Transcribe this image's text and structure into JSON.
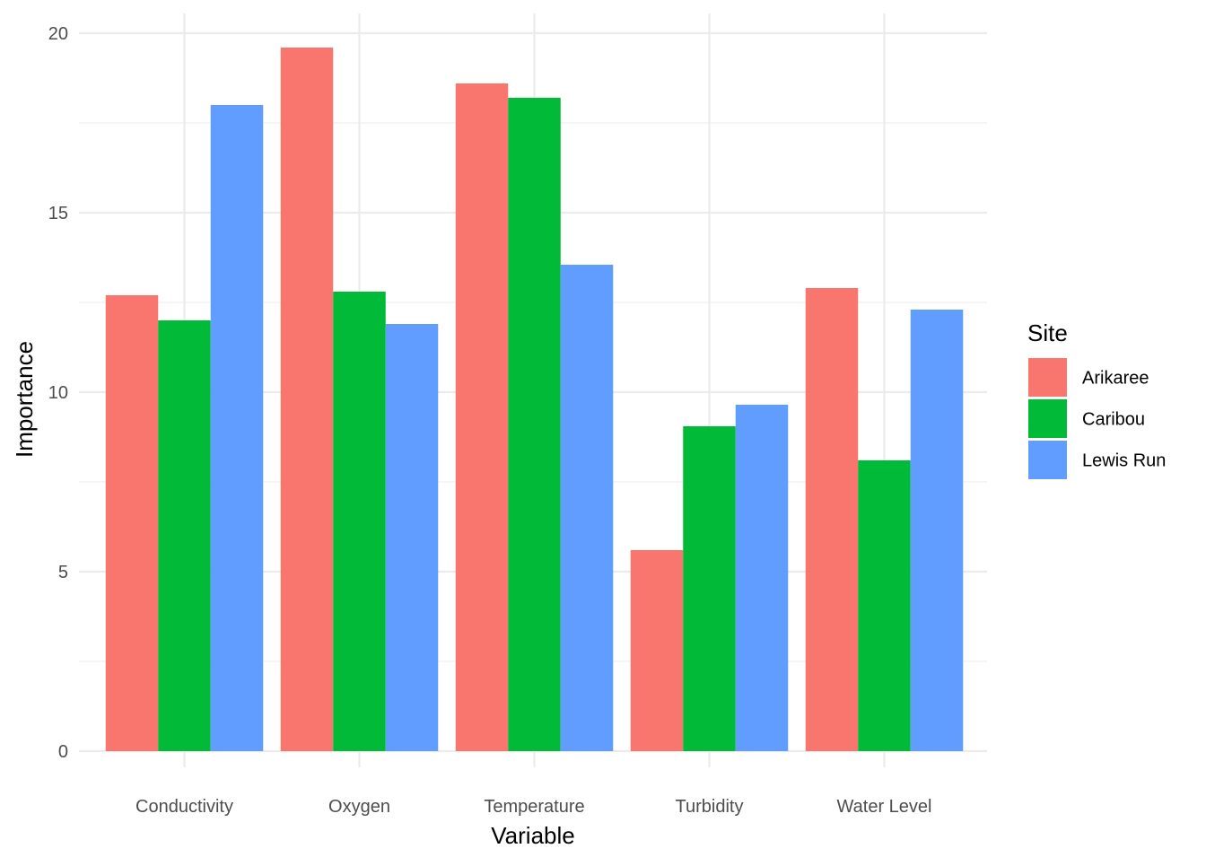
{
  "chart_data": {
    "type": "bar",
    "title": "",
    "xlabel": "Variable",
    "ylabel": "Importance",
    "categories": [
      "Conductivity",
      "Oxygen",
      "Temperature",
      "Turbidity",
      "Water Level"
    ],
    "ylim": [
      0,
      20
    ],
    "yticks": [
      0,
      5,
      10,
      15,
      20
    ],
    "grid": true,
    "legend": {
      "title": "Site",
      "position": "right"
    },
    "series": [
      {
        "name": "Arikaree",
        "color": "#F8766D",
        "values": [
          12.7,
          19.6,
          18.6,
          5.6,
          12.9
        ]
      },
      {
        "name": "Caribou",
        "color": "#00BA38",
        "values": [
          12.0,
          12.8,
          18.2,
          9.05,
          8.1
        ]
      },
      {
        "name": "Lewis Run",
        "color": "#619CFF",
        "values": [
          18.0,
          11.9,
          13.55,
          9.65,
          12.3
        ]
      }
    ]
  }
}
